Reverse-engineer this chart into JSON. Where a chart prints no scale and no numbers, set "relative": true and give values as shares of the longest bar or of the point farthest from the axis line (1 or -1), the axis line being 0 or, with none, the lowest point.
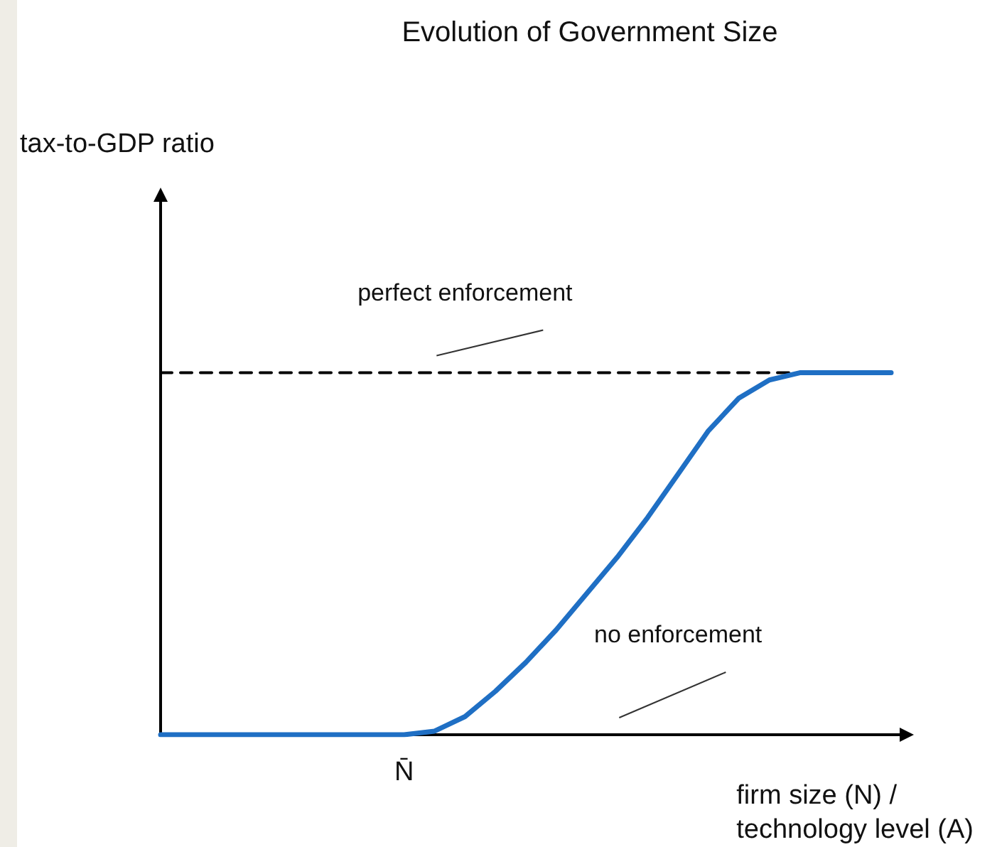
{
  "chart_data": {
    "type": "line",
    "title": "Evolution of Government Size",
    "xlabel": "firm size (N) /\ntechnology level (A)",
    "relative": true,
    "categories": [
      null,
      null,
      null,
      null,
      null,
      null,
      null,
      null,
      null,
      null,
      null,
      null,
      null,
      null,
      null,
      null,
      null,
      null,
      null,
      null,
      null,
      null,
      null,
      null,
      null
    ],
    "series": [
      {
        "color": "#1f6fc4",
        "line_style": "solid",
        "values": [
          0,
          0,
          0,
          0,
          0,
          0,
          0,
          0,
          0,
          0.01,
          0.05,
          0.12,
          0.2,
          0.29,
          0.39,
          0.49,
          0.6,
          0.72,
          0.84,
          0.93,
          0.98,
          1,
          1,
          1,
          1
        ]
      },
      {
        "type": "line",
        "color": "#000000",
        "line_style": "dashed",
        "values": [
          1,
          1,
          1,
          1,
          1,
          1,
          1,
          1,
          1,
          1,
          1,
          1,
          1,
          1,
          1,
          1,
          1,
          1,
          1,
          1,
          1,
          1,
          null,
          null,
          null
        ]
      }
    ],
    "annotations": [
      {
        "text": "perfect enforcement",
        "y": 1
      },
      "no enforcement",
      "N̄",
      "tax-to-GDP ratio"
    ],
    "marker": "none"
  }
}
